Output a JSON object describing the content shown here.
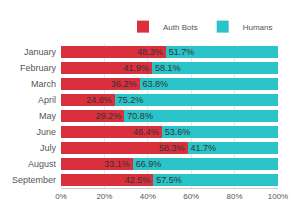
{
  "chart_data": {
    "type": "bar",
    "orientation": "horizontal",
    "stacked": true,
    "data_labels": true,
    "legend": "top-right",
    "grid": true,
    "categories": [
      "January",
      "February",
      "March",
      "April",
      "May",
      "June",
      "July",
      "August",
      "September"
    ],
    "series": [
      {
        "name": "Auth Bots",
        "color": "#d8303c",
        "values": [
          48.3,
          41.9,
          36.2,
          24.8,
          29.2,
          46.4,
          58.3,
          33.1,
          42.5
        ],
        "value_labels": [
          "48.3%",
          "41.9%",
          "36.2%",
          "24.8%",
          "29.2%",
          "46.4%",
          "58.3%",
          "33.1%",
          "42.5%"
        ]
      },
      {
        "name": "Humans",
        "color": "#2ac3c7",
        "values": [
          51.7,
          58.1,
          63.8,
          75.2,
          70.8,
          53.6,
          41.7,
          66.9,
          57.5
        ],
        "value_labels": [
          "51.7%",
          "58.1%",
          "63.8%",
          "75.2%",
          "70.8%",
          "53.6%",
          "41.7%",
          "66.9%",
          "57.5%"
        ]
      }
    ],
    "xlim": [
      0,
      100
    ],
    "xticks": [
      {
        "value": 0,
        "label": "0%"
      },
      {
        "value": 20,
        "label": "20%"
      },
      {
        "value": 40,
        "label": "40%"
      },
      {
        "value": 60,
        "label": "60%"
      },
      {
        "value": 80,
        "label": "80%"
      },
      {
        "value": 100,
        "label": "100%"
      }
    ]
  }
}
